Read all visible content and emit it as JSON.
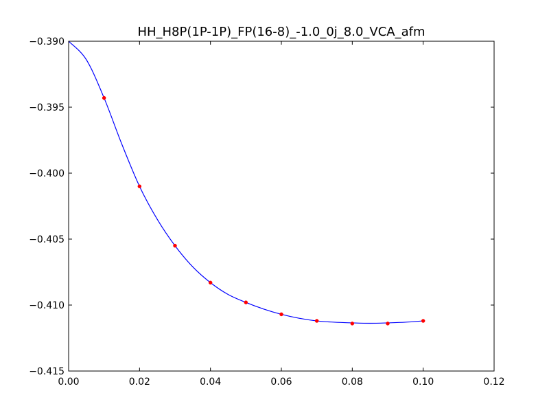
{
  "chart_data": {
    "type": "line",
    "title": "HH_H8P(1P-1P)_FP(16-8)_-1.0_0j_8.0_VCA_afm",
    "xlabel": "",
    "ylabel": "",
    "xlim": [
      0.0,
      0.12
    ],
    "ylim": [
      -0.415,
      -0.39
    ],
    "x_ticks": [
      "0.00",
      "0.02",
      "0.04",
      "0.06",
      "0.08",
      "0.10",
      "0.12"
    ],
    "y_ticks": [
      "−0.390",
      "−0.395",
      "−0.400",
      "−0.405",
      "−0.410",
      "−0.415"
    ],
    "grid": false,
    "legend": "none",
    "series": [
      {
        "kind": "line",
        "color": "#0000ff",
        "x": [
          0.0,
          0.005,
          0.01,
          0.015,
          0.02,
          0.025,
          0.03,
          0.035,
          0.04,
          0.045,
          0.05,
          0.055,
          0.06,
          0.065,
          0.07,
          0.075,
          0.08,
          0.085,
          0.09,
          0.095,
          0.1
        ],
        "y": [
          -0.39,
          -0.3914,
          -0.3943,
          -0.3978,
          -0.401,
          -0.4035,
          -0.4055,
          -0.4071,
          -0.4083,
          -0.4092,
          -0.4098,
          -0.4103,
          -0.4107,
          -0.411,
          -0.4112,
          -0.4113,
          -0.41135,
          -0.41138,
          -0.41135,
          -0.4113,
          -0.4112
        ]
      },
      {
        "kind": "points",
        "color": "#ff0000",
        "x": [
          0.01,
          0.02,
          0.03,
          0.04,
          0.05,
          0.06,
          0.07,
          0.08,
          0.09,
          0.1
        ],
        "y": [
          -0.3943,
          -0.401,
          -0.4055,
          -0.4083,
          -0.4098,
          -0.4107,
          -0.4112,
          -0.4114,
          -0.4114,
          -0.4112
        ]
      }
    ]
  }
}
